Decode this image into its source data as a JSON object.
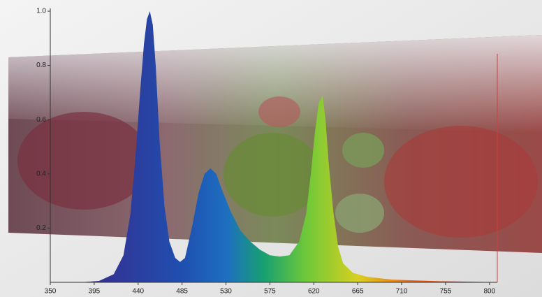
{
  "chart_data": {
    "type": "area",
    "x": [
      380,
      400,
      415,
      425,
      432,
      437,
      442,
      446,
      449,
      452,
      455,
      458,
      462,
      467,
      472,
      478,
      483,
      488,
      495,
      502,
      508,
      514,
      520,
      526,
      535,
      545,
      555,
      565,
      575,
      585,
      595,
      605,
      612,
      617,
      621,
      625,
      629,
      632,
      635,
      640,
      645,
      650,
      660,
      675,
      700,
      750,
      800
    ],
    "values": [
      0,
      0.005,
      0.03,
      0.1,
      0.25,
      0.45,
      0.7,
      0.88,
      0.97,
      1.0,
      0.95,
      0.8,
      0.52,
      0.28,
      0.15,
      0.09,
      0.075,
      0.09,
      0.2,
      0.33,
      0.4,
      0.42,
      0.4,
      0.34,
      0.26,
      0.19,
      0.15,
      0.12,
      0.1,
      0.095,
      0.1,
      0.15,
      0.25,
      0.4,
      0.55,
      0.66,
      0.69,
      0.6,
      0.45,
      0.26,
      0.13,
      0.07,
      0.035,
      0.02,
      0.01,
      0.004,
      0.001
    ],
    "xlim": [
      350,
      808
    ],
    "ylim": [
      0,
      1
    ],
    "xticks": [
      350,
      395,
      440,
      485,
      530,
      575,
      620,
      665,
      710,
      755,
      800
    ],
    "yticks": [
      0.2,
      0.4,
      0.6,
      0.8,
      {
        "value": 1,
        "label": "1.0"
      }
    ]
  }
}
